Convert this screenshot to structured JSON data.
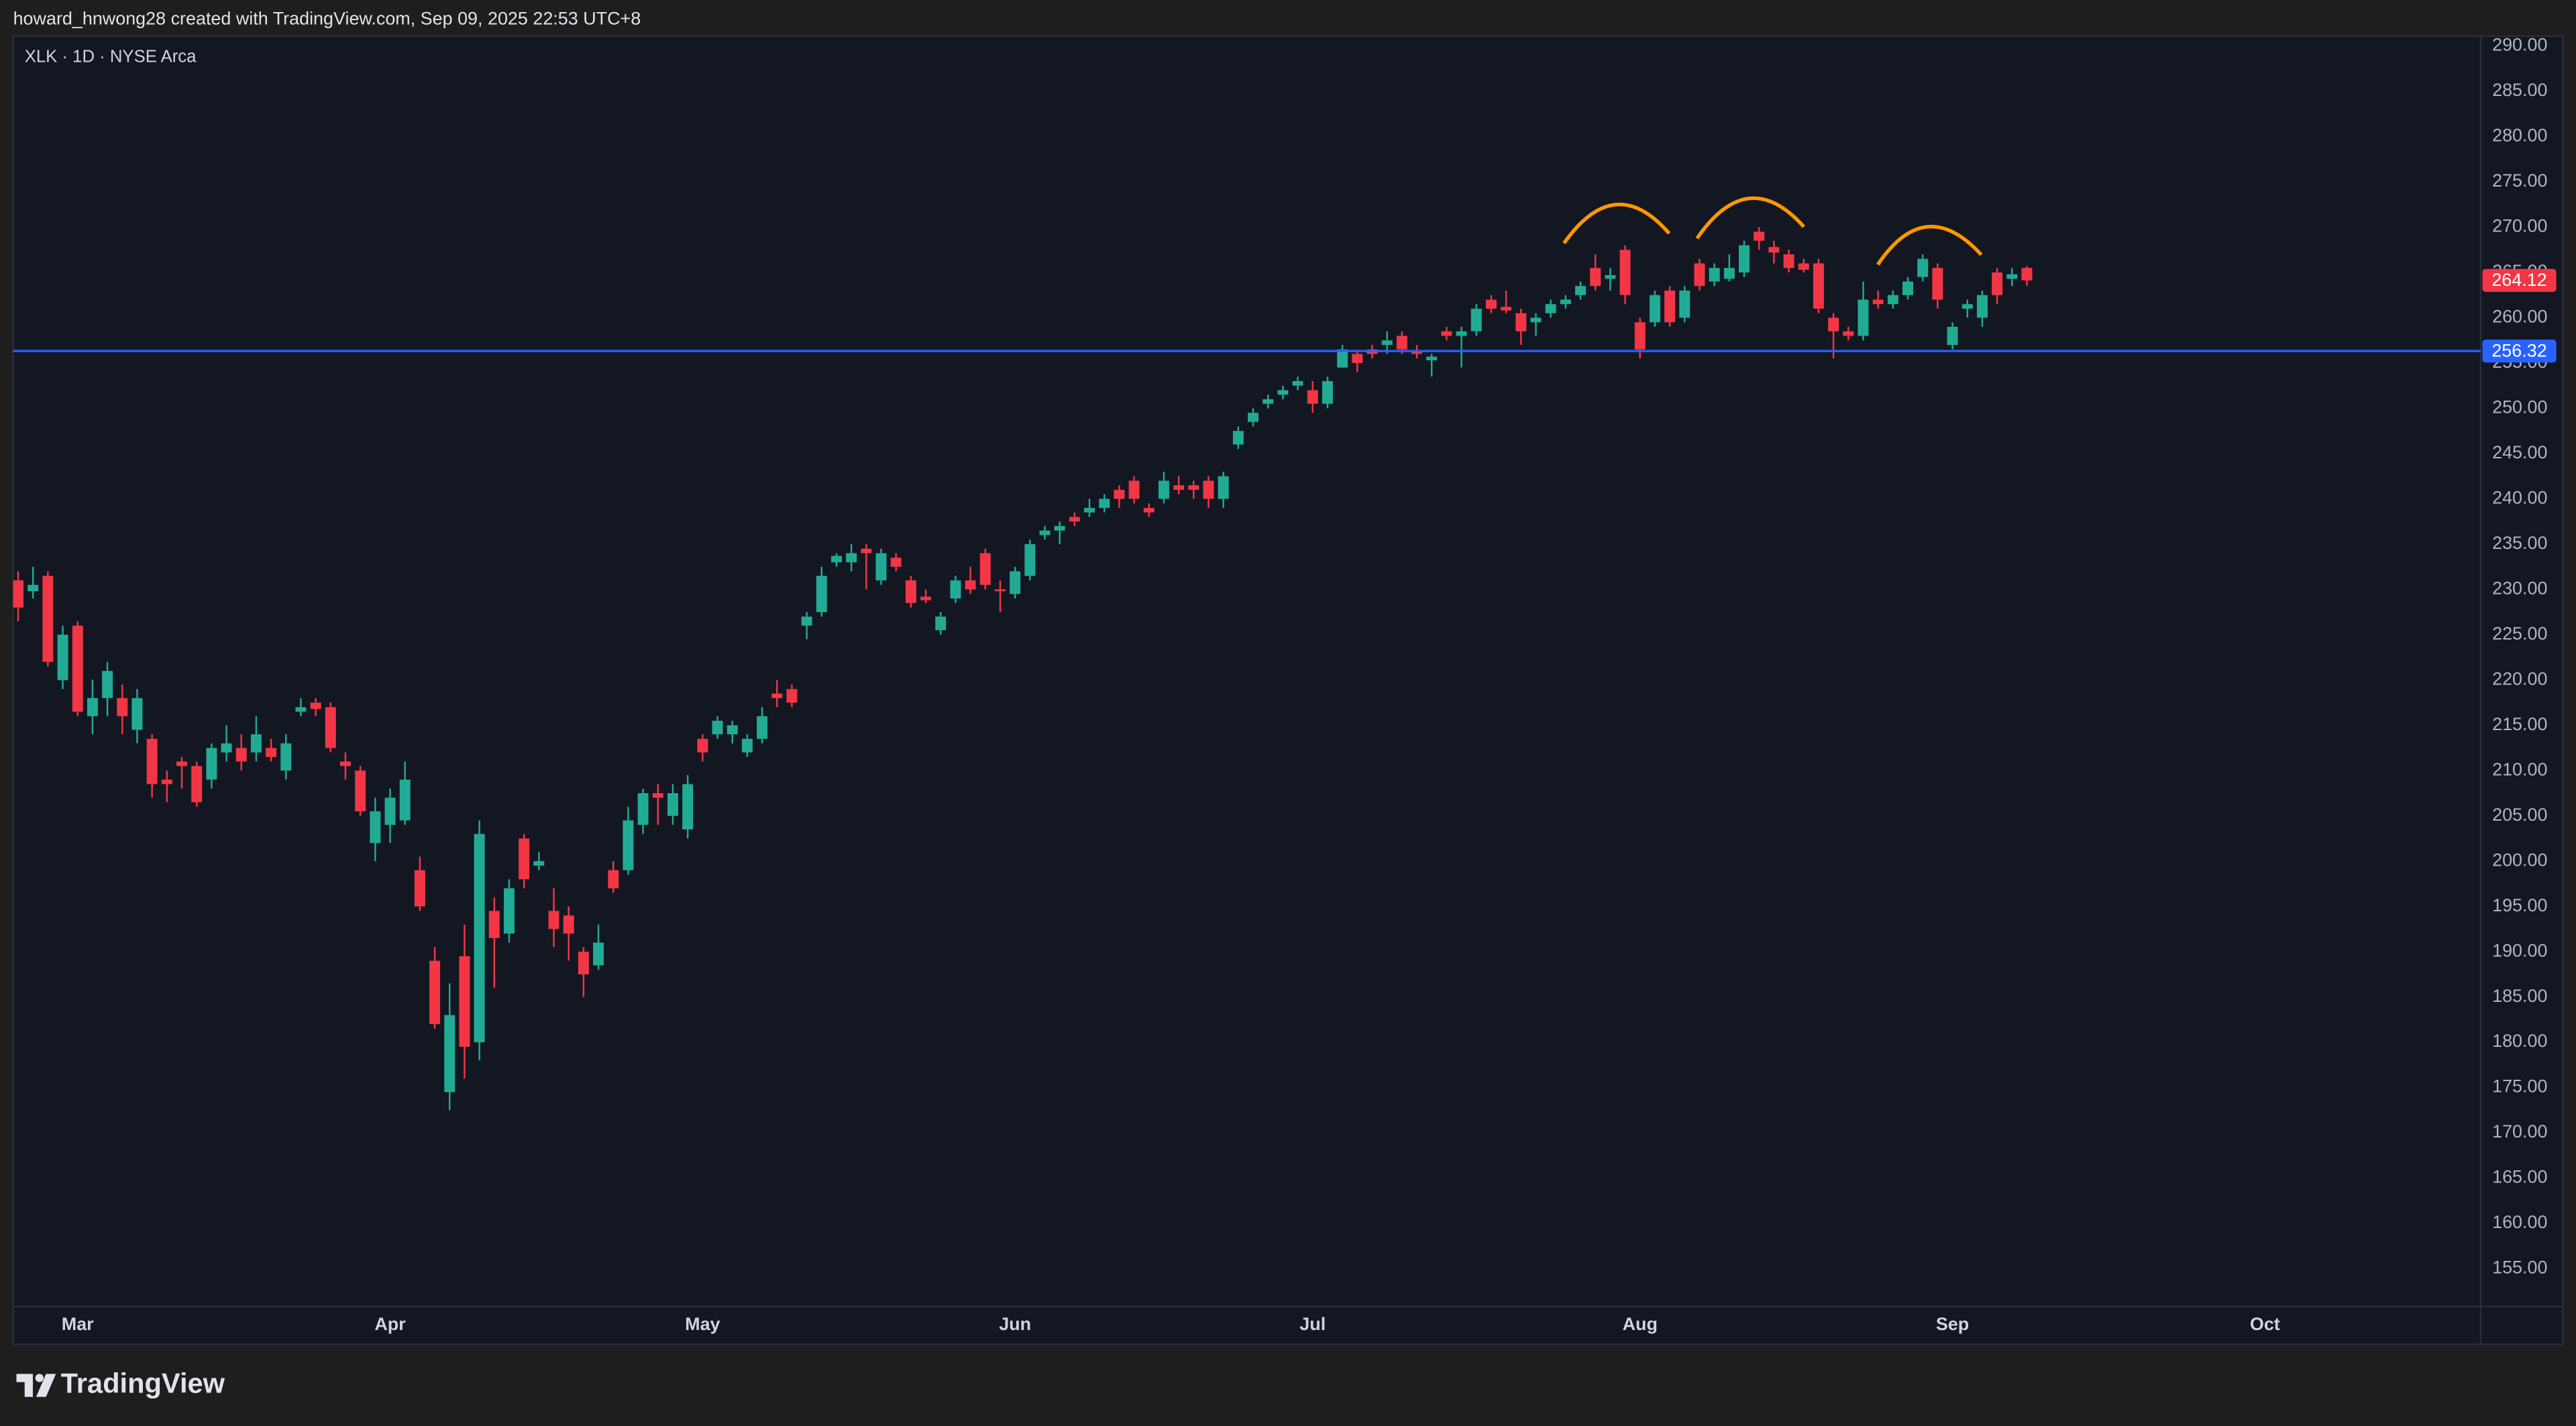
{
  "header": {
    "attribution": "howard_hnwong28 created with TradingView.com, Sep 09, 2025 22:53 UTC+8"
  },
  "footer": {
    "brand": "TradingView"
  },
  "chart_data": {
    "type": "candlestick",
    "title": "XLK · 1D · NYSE Arca",
    "up_color": "#22ab94",
    "down_color": "#f23645",
    "grid": false,
    "categories": [
      null,
      null,
      null,
      null,
      "Mar",
      null,
      null,
      null,
      null,
      null,
      null,
      null,
      null,
      null,
      null,
      null,
      null,
      null,
      null,
      null,
      null,
      null,
      null,
      null,
      null,
      "Apr",
      null,
      null,
      null,
      null,
      null,
      null,
      null,
      null,
      null,
      null,
      null,
      null,
      null,
      null,
      null,
      null,
      null,
      null,
      null,
      null,
      "May",
      null,
      null,
      null,
      null,
      null,
      null,
      null,
      null,
      null,
      null,
      null,
      null,
      null,
      null,
      null,
      null,
      null,
      null,
      null,
      null,
      "Jun",
      null,
      null,
      null,
      null,
      null,
      null,
      null,
      null,
      null,
      null,
      null,
      null,
      null,
      null,
      null,
      null,
      null,
      null,
      null,
      "Jul",
      null,
      null,
      null,
      null,
      null,
      null,
      null,
      null,
      null,
      null,
      null,
      null,
      null,
      null,
      null,
      null,
      null,
      null,
      null,
      null,
      null,
      "Aug",
      null,
      null,
      null,
      null,
      null,
      null,
      null,
      null,
      null,
      null,
      null,
      null,
      null,
      null,
      null,
      null,
      null,
      null,
      null,
      null,
      "Sep",
      null,
      null,
      null,
      null,
      null,
      null,
      null,
      null,
      null,
      null,
      null,
      null,
      null,
      null,
      null,
      null,
      null,
      null,
      null,
      null,
      "Oct",
      null,
      null,
      null,
      null,
      null,
      null,
      null,
      null,
      null,
      null,
      null,
      null,
      null,
      null
    ],
    "open": [
      231,
      229.8,
      231.5,
      220,
      226,
      216,
      218,
      218,
      214.5,
      213.5,
      209,
      211,
      210.5,
      209,
      212,
      212.5,
      212,
      212.5,
      210,
      216.5,
      217.5,
      217,
      211,
      210,
      202,
      204,
      204.5,
      199,
      189,
      174.5,
      189.5,
      180,
      194.5,
      192,
      202.5,
      199.5,
      194.5,
      194,
      190,
      188.5,
      199,
      199,
      204,
      207.5,
      205,
      203.5,
      213.5,
      214,
      214,
      212,
      213.5,
      218.5,
      219,
      226,
      227.5,
      233,
      233,
      234.5,
      231,
      233.5,
      231,
      229.2,
      225.5,
      229,
      231,
      234,
      230,
      229.5,
      231.5,
      236,
      236.5,
      238,
      238.5,
      239,
      241,
      242,
      239,
      240,
      241.5,
      241.5,
      242,
      240,
      246,
      248.5,
      250.5,
      251.5,
      252.5,
      252,
      250.5,
      254.5,
      256,
      256.5,
      257,
      258,
      256.2,
      255.3,
      258.5,
      258,
      258.5,
      262,
      261.2,
      260.5,
      259.5,
      260.5,
      261.5,
      262.5,
      265.5,
      264.3,
      267.5,
      259.5,
      259.5,
      263,
      260,
      266,
      264,
      264.3,
      265,
      269.5,
      267.8,
      267,
      266,
      266,
      260,
      258.5,
      258,
      262,
      261.5,
      262.5,
      264.5,
      265.5,
      257,
      261,
      260,
      265,
      264.3,
      265.5,
      null,
      null,
      null,
      null,
      null,
      null,
      null,
      null,
      null,
      null,
      null,
      null,
      null,
      null,
      null,
      null,
      null,
      null,
      null,
      null,
      null,
      null,
      null,
      null,
      null,
      null,
      null,
      null,
      null,
      null
    ],
    "high": [
      232,
      232.5,
      232,
      226,
      226.5,
      220,
      222,
      219.5,
      219,
      214,
      210,
      211.5,
      211,
      213,
      215,
      214,
      216,
      213.5,
      214,
      218,
      218,
      217.5,
      212,
      210.5,
      207,
      208,
      211,
      200.5,
      190.5,
      186.5,
      193,
      204.5,
      196,
      198,
      203,
      201,
      197,
      195,
      190.5,
      193,
      200,
      206,
      208,
      208.5,
      208.5,
      209.5,
      214,
      216,
      215.5,
      214,
      217,
      220,
      219.5,
      227.5,
      232.5,
      234,
      235,
      235,
      234.5,
      234,
      231.5,
      230,
      227.5,
      231.5,
      232.5,
      234.5,
      231,
      232.5,
      235.5,
      237,
      237.5,
      238.5,
      240,
      240.5,
      241.5,
      242.5,
      239.5,
      243,
      242.5,
      242,
      242.5,
      243,
      248,
      250,
      251.5,
      252.5,
      253.5,
      253,
      253.5,
      257,
      256.5,
      257,
      258.5,
      258.5,
      257,
      256,
      259,
      259,
      261.5,
      262.5,
      263,
      261,
      260.5,
      262,
      262.5,
      264,
      267,
      265.5,
      268,
      260,
      263,
      263.5,
      263.5,
      266.5,
      266,
      267,
      268.5,
      270,
      268.5,
      267.5,
      266.5,
      266.5,
      260.5,
      259,
      264,
      263,
      263,
      264.5,
      267,
      266,
      259.5,
      262,
      263,
      265.5,
      265.5,
      265.7,
      null,
      null,
      null,
      null,
      null,
      null,
      null,
      null,
      null,
      null,
      null,
      null,
      null,
      null,
      null,
      null,
      null,
      null,
      null,
      null,
      null,
      null,
      null,
      null,
      null,
      null,
      null,
      null,
      null,
      null
    ],
    "low": [
      226.5,
      229,
      221.5,
      219,
      216,
      214,
      216,
      214,
      213,
      207,
      206.5,
      208,
      206,
      208,
      211,
      210,
      211,
      211,
      209,
      216,
      216,
      212,
      209,
      205,
      200,
      202,
      204,
      194.5,
      181.5,
      172.5,
      176,
      178,
      186,
      191,
      197,
      199,
      190.5,
      189,
      185,
      188,
      196.5,
      198.5,
      203,
      204,
      204,
      202.5,
      211,
      213.5,
      213,
      211.5,
      213,
      217,
      217,
      224.5,
      227,
      232.5,
      232,
      230,
      230.5,
      232,
      228,
      228.5,
      225,
      228.5,
      229.5,
      230,
      227.5,
      229,
      231,
      235.5,
      235,
      237,
      238,
      238.5,
      239,
      239.5,
      238,
      239.5,
      240.5,
      240,
      239,
      239,
      245.5,
      248,
      250,
      251,
      252,
      249.5,
      250,
      254.5,
      254,
      255.5,
      256,
      256,
      255.5,
      253.5,
      257.5,
      254.5,
      258,
      260.5,
      260.5,
      257,
      258,
      260,
      261,
      262,
      263,
      263,
      261.5,
      255.5,
      259,
      259,
      259.5,
      263,
      263.5,
      264,
      264.5,
      267.5,
      266,
      265,
      265,
      260.5,
      255.5,
      257.5,
      257.5,
      261,
      261,
      262,
      264,
      261,
      256.5,
      260,
      259,
      261.5,
      263.5,
      263.5,
      null,
      null,
      null,
      null,
      null,
      null,
      null,
      null,
      null,
      null,
      null,
      null,
      null,
      null,
      null,
      null,
      null,
      null,
      null,
      null,
      null,
      null,
      null,
      null,
      null,
      null,
      null,
      null,
      null,
      null
    ],
    "close": [
      228,
      230.5,
      222,
      225,
      216.5,
      218,
      221,
      216,
      218,
      208.5,
      208.5,
      210.5,
      206.5,
      212.5,
      213,
      211,
      214,
      211.5,
      213,
      217,
      216.8,
      212.5,
      210.5,
      205.5,
      205.5,
      207,
      209,
      195,
      182,
      183,
      179.5,
      203,
      191.5,
      197,
      198,
      200,
      192.5,
      192,
      187.5,
      191,
      197,
      204.5,
      207.5,
      207,
      207.5,
      208.5,
      212,
      215.5,
      215,
      213.5,
      216,
      218,
      217.5,
      227,
      231.5,
      233.7,
      234,
      234,
      234,
      232.5,
      228.5,
      228.8,
      227,
      231,
      230,
      230.5,
      229.8,
      232,
      235,
      236.5,
      237,
      237.5,
      239,
      240,
      240,
      240,
      238.5,
      242,
      241,
      241,
      240,
      242.5,
      247.5,
      249.5,
      251,
      252,
      253,
      250.5,
      253,
      256.5,
      255,
      256,
      257.5,
      256.5,
      256,
      255.7,
      258,
      258.5,
      261,
      261,
      260.8,
      258.5,
      260,
      261.5,
      262,
      263.5,
      263.5,
      264.7,
      262.5,
      256.5,
      262.5,
      259.5,
      263,
      263.5,
      265.5,
      265.5,
      268,
      268.5,
      267.2,
      265.5,
      265.3,
      261,
      258.5,
      258,
      262,
      261.5,
      262.5,
      264,
      266.5,
      262,
      259,
      261.5,
      262.5,
      262.5,
      264.8,
      264.12,
      null,
      null,
      null,
      null,
      null,
      null,
      null,
      null,
      null,
      null,
      null,
      null,
      null,
      null,
      null,
      null,
      null,
      null,
      null,
      null,
      null,
      null,
      null,
      null,
      null,
      null,
      null,
      null,
      null,
      null
    ],
    "price_lines": [
      {
        "value": 256.32,
        "color": "#2962ff"
      }
    ],
    "ylim": [
      150.82,
      291.09
    ],
    "yticks": [
      {
        "value": 155,
        "label": "155.00"
      },
      {
        "value": 160,
        "label": "160.00"
      },
      {
        "value": 165,
        "label": "165.00"
      },
      {
        "value": 170,
        "label": "170.00"
      },
      {
        "value": 175,
        "label": "175.00"
      },
      {
        "value": 180,
        "label": "180.00"
      },
      {
        "value": 185,
        "label": "185.00"
      },
      {
        "value": 190,
        "label": "190.00"
      },
      {
        "value": 195,
        "label": "195.00"
      },
      {
        "value": 200,
        "label": "200.00"
      },
      {
        "value": 205,
        "label": "205.00"
      },
      {
        "value": 210,
        "label": "210.00"
      },
      {
        "value": 215,
        "label": "215.00"
      },
      {
        "value": 220,
        "label": "220.00"
      },
      {
        "value": 225,
        "label": "225.00"
      },
      {
        "value": 230,
        "label": "230.00"
      },
      {
        "value": 235,
        "label": "235.00"
      },
      {
        "value": 240,
        "label": "240.00"
      },
      {
        "value": 245,
        "label": "245.00"
      },
      {
        "value": 250,
        "label": "250.00"
      },
      {
        "value": 255,
        "label": "255.00"
      },
      {
        "value": 260,
        "label": "260.00"
      },
      {
        "value": 265,
        "label": "265.00"
      },
      {
        "value": 270,
        "label": "270.00"
      },
      {
        "value": 275,
        "label": "275.00"
      },
      {
        "value": 280,
        "label": "280.00"
      },
      {
        "value": 285,
        "label": "285.00"
      },
      {
        "value": 290,
        "label": "290.00"
      }
    ]
  }
}
